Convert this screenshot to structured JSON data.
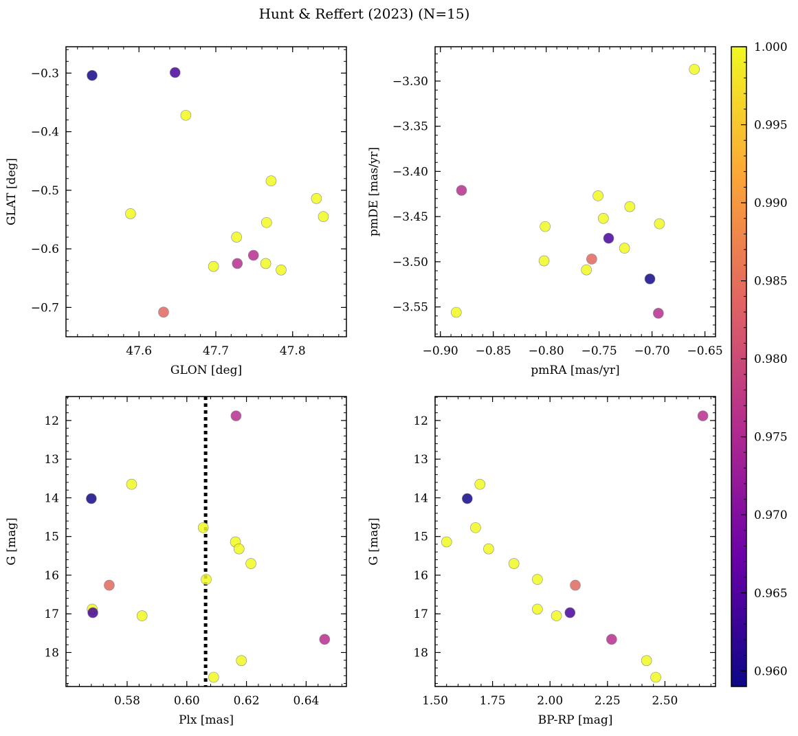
{
  "title": "Hunt & Reffert (2023) (N=15)",
  "colors": {
    "colormap": [
      "#0d0887",
      "#6a00a8",
      "#b12a90",
      "#e16462",
      "#fca636",
      "#f0f921"
    ],
    "marker_edge": "#888888",
    "dotted_line": "#000000"
  },
  "colorbar": {
    "range": [
      0.959,
      1.0
    ],
    "ticks": [
      "0.960",
      "0.965",
      "0.970",
      "0.975",
      "0.980",
      "0.985",
      "0.990",
      "0.995",
      "1.000"
    ]
  },
  "chart_data": [
    {
      "type": "scatter",
      "xlabel": "GLON [deg]",
      "ylabel": "GLAT [deg]",
      "xlim": [
        47.505,
        47.87
      ],
      "ylim": [
        -0.75,
        -0.255
      ],
      "xticks": [
        "47.6",
        "47.7",
        "47.8"
      ],
      "yticks": [
        "−0.3",
        "−0.4",
        "−0.5",
        "−0.6",
        "−0.7"
      ],
      "points": [
        {
          "x": 47.539,
          "y": -0.304,
          "c": 0.9595
        },
        {
          "x": 47.647,
          "y": -0.299,
          "c": 0.964
        },
        {
          "x": 47.661,
          "y": -0.372,
          "c": 1.0
        },
        {
          "x": 47.589,
          "y": -0.54,
          "c": 1.0
        },
        {
          "x": 47.772,
          "y": -0.484,
          "c": 1.0
        },
        {
          "x": 47.831,
          "y": -0.514,
          "c": 1.0
        },
        {
          "x": 47.84,
          "y": -0.545,
          "c": 1.0
        },
        {
          "x": 47.766,
          "y": -0.555,
          "c": 1.0
        },
        {
          "x": 47.727,
          "y": -0.58,
          "c": 1.0
        },
        {
          "x": 47.749,
          "y": -0.611,
          "c": 0.976
        },
        {
          "x": 47.728,
          "y": -0.625,
          "c": 0.976
        },
        {
          "x": 47.765,
          "y": -0.625,
          "c": 1.0
        },
        {
          "x": 47.697,
          "y": -0.63,
          "c": 1.0
        },
        {
          "x": 47.785,
          "y": -0.636,
          "c": 1.0
        },
        {
          "x": 47.632,
          "y": -0.708,
          "c": 0.984
        }
      ]
    },
    {
      "type": "scatter",
      "xlabel": "pmRA [mas/yr]",
      "ylabel": "pmDE [mas/yr]",
      "xlim": [
        -0.905,
        -0.64
      ],
      "ylim": [
        -3.583,
        -3.262
      ],
      "xticks": [
        "−0.90",
        "−0.85",
        "−0.80",
        "−0.75",
        "−0.70",
        "−0.65"
      ],
      "yticks": [
        "−3.30",
        "−3.35",
        "−3.40",
        "−3.45",
        "−3.50",
        "−3.55"
      ],
      "points": [
        {
          "x": -0.66,
          "y": -3.287,
          "c": 1.0
        },
        {
          "x": -0.88,
          "y": -3.421,
          "c": 0.976
        },
        {
          "x": -0.751,
          "y": -3.427,
          "c": 1.0
        },
        {
          "x": -0.721,
          "y": -3.439,
          "c": 1.0
        },
        {
          "x": -0.746,
          "y": -3.452,
          "c": 1.0
        },
        {
          "x": -0.801,
          "y": -3.461,
          "c": 1.0
        },
        {
          "x": -0.693,
          "y": -3.458,
          "c": 1.0
        },
        {
          "x": -0.741,
          "y": -3.474,
          "c": 0.964
        },
        {
          "x": -0.726,
          "y": -3.485,
          "c": 1.0
        },
        {
          "x": -0.757,
          "y": -3.497,
          "c": 0.984
        },
        {
          "x": -0.802,
          "y": -3.499,
          "c": 1.0
        },
        {
          "x": -0.762,
          "y": -3.509,
          "c": 1.0
        },
        {
          "x": -0.702,
          "y": -3.519,
          "c": 0.9595
        },
        {
          "x": -0.885,
          "y": -3.556,
          "c": 1.0
        },
        {
          "x": -0.694,
          "y": -3.557,
          "c": 0.976
        }
      ]
    },
    {
      "type": "scatter",
      "xlabel": "Plx [mas]",
      "ylabel": "G [mag]",
      "xlim": [
        0.5595,
        0.6535
      ],
      "ylim": [
        18.88,
        11.38
      ],
      "invert_y": true,
      "xticks": [
        "0.58",
        "0.60",
        "0.62",
        "0.64"
      ],
      "yticks": [
        "12",
        "13",
        "14",
        "15",
        "16",
        "17",
        "18"
      ],
      "vline": 0.6063,
      "points": [
        {
          "x": 0.6165,
          "y": 11.88,
          "c": 0.976
        },
        {
          "x": 0.5815,
          "y": 13.65,
          "c": 1.0
        },
        {
          "x": 0.568,
          "y": 14.02,
          "c": 0.9595
        },
        {
          "x": 0.6055,
          "y": 14.77,
          "c": 1.0
        },
        {
          "x": 0.6163,
          "y": 15.14,
          "c": 1.0
        },
        {
          "x": 0.6175,
          "y": 15.32,
          "c": 1.0
        },
        {
          "x": 0.6215,
          "y": 15.7,
          "c": 1.0
        },
        {
          "x": 0.6065,
          "y": 16.11,
          "c": 1.0
        },
        {
          "x": 0.574,
          "y": 16.26,
          "c": 0.984
        },
        {
          "x": 0.5683,
          "y": 16.88,
          "c": 1.0
        },
        {
          "x": 0.5685,
          "y": 16.97,
          "c": 0.964
        },
        {
          "x": 0.585,
          "y": 17.05,
          "c": 1.0
        },
        {
          "x": 0.6462,
          "y": 17.66,
          "c": 0.976
        },
        {
          "x": 0.6183,
          "y": 18.21,
          "c": 1.0
        },
        {
          "x": 0.609,
          "y": 18.64,
          "c": 1.0
        }
      ]
    },
    {
      "type": "scatter",
      "xlabel": "BP-RP [mag]",
      "ylabel": "G [mag]",
      "xlim": [
        1.5,
        2.72
      ],
      "ylim": [
        18.88,
        11.38
      ],
      "invert_y": true,
      "xticks": [
        "1.50",
        "1.75",
        "2.00",
        "2.25",
        "2.50"
      ],
      "yticks": [
        "12",
        "13",
        "14",
        "15",
        "16",
        "17",
        "18"
      ],
      "points": [
        {
          "x": 2.665,
          "y": 11.88,
          "c": 0.976
        },
        {
          "x": 1.695,
          "y": 13.65,
          "c": 1.0
        },
        {
          "x": 1.64,
          "y": 14.02,
          "c": 0.9595
        },
        {
          "x": 1.676,
          "y": 14.77,
          "c": 1.0
        },
        {
          "x": 1.55,
          "y": 15.14,
          "c": 1.0
        },
        {
          "x": 1.733,
          "y": 15.32,
          "c": 1.0
        },
        {
          "x": 1.843,
          "y": 15.7,
          "c": 1.0
        },
        {
          "x": 1.945,
          "y": 16.11,
          "c": 1.0
        },
        {
          "x": 2.11,
          "y": 16.26,
          "c": 0.984
        },
        {
          "x": 1.945,
          "y": 16.88,
          "c": 1.0
        },
        {
          "x": 2.087,
          "y": 16.97,
          "c": 0.964
        },
        {
          "x": 2.028,
          "y": 17.05,
          "c": 1.0
        },
        {
          "x": 2.268,
          "y": 17.66,
          "c": 0.976
        },
        {
          "x": 2.42,
          "y": 18.21,
          "c": 1.0
        },
        {
          "x": 2.46,
          "y": 18.64,
          "c": 1.0
        }
      ]
    }
  ]
}
